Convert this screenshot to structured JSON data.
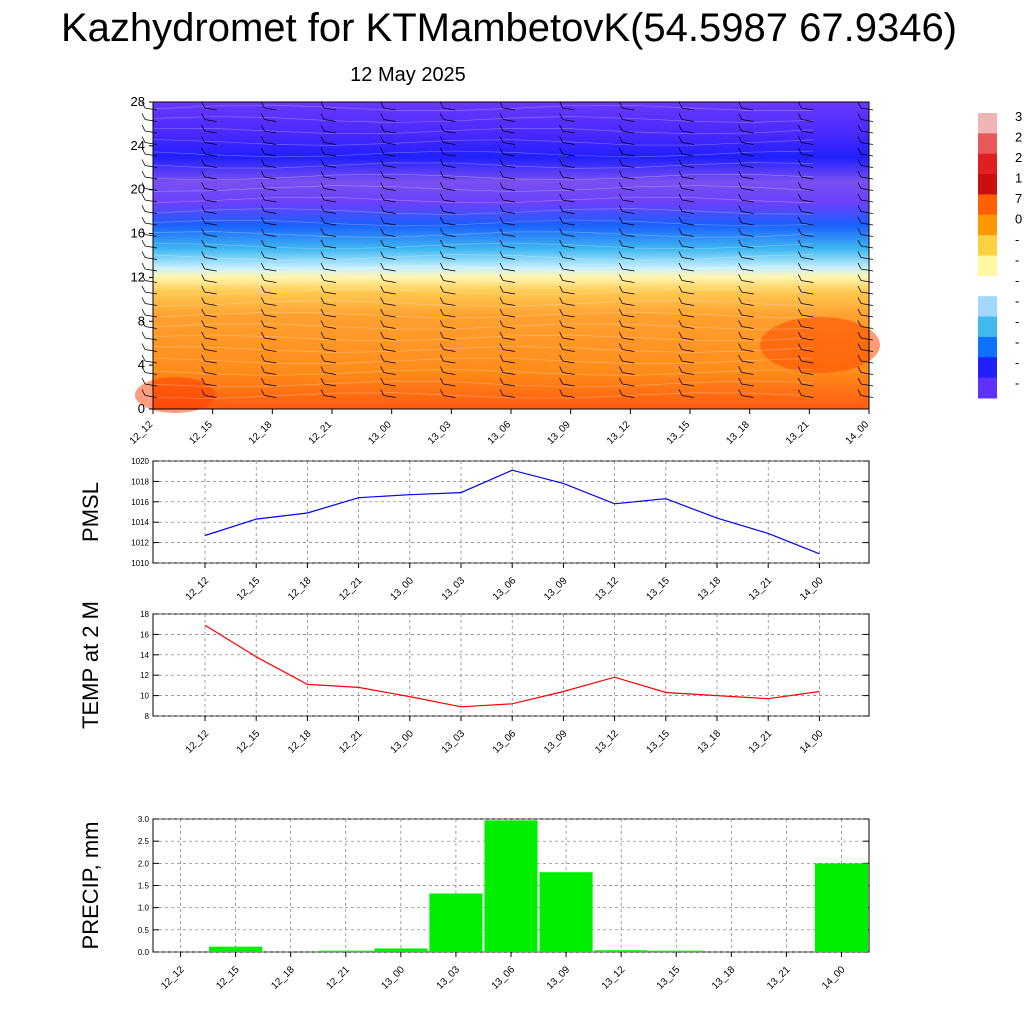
{
  "title": "Kazhydromet for KTMambetovK(54.5987 67.9346)",
  "subtitle": "12 May 2025",
  "times": [
    "12_12",
    "12_15",
    "12_18",
    "12_21",
    "13_00",
    "13_03",
    "13_06",
    "13_09",
    "13_12",
    "13_15",
    "13_18",
    "13_21",
    "14_00"
  ],
  "colorbar": {
    "tick_labels": [
      "3",
      "2",
      "2",
      "1",
      "7",
      "0",
      "-",
      "-",
      "-",
      "-",
      "-",
      "-",
      "-",
      "-"
    ],
    "colors": [
      "#f0b4b4",
      "#e8585a",
      "#e02020",
      "#c81010",
      "#ff6000",
      "#ff9800",
      "#ffd040",
      "#fff8a0",
      "#ffffff",
      "#a0d8ff",
      "#40b8f0",
      "#1070ff",
      "#2020ff",
      "#6030ff"
    ]
  },
  "chart_data": [
    {
      "type": "heatmap",
      "x": [
        "12_12",
        "12_15",
        "12_18",
        "12_21",
        "13_00",
        "13_03",
        "13_06",
        "13_09",
        "13_12",
        "13_15",
        "13_18",
        "13_21",
        "14_00"
      ],
      "ylim": [
        0,
        28
      ],
      "y_ticks": [
        "0",
        "4",
        "8",
        "12",
        "16",
        "20",
        "24",
        "28"
      ]
    },
    {
      "type": "line",
      "ylabel": "PMSL",
      "ylim": [
        1010,
        1020
      ],
      "y_ticks": [
        "1010",
        "1012",
        "1014",
        "1016",
        "1018",
        "1020"
      ],
      "series": [
        {
          "values": [
            1012.7,
            1014.3,
            1014.9,
            1016.4,
            1016.7,
            1016.9,
            1019.1,
            1017.8,
            1015.8,
            1016.3,
            1014.4,
            1012.9,
            1010.9
          ],
          "color": "#0000ff"
        }
      ]
    },
    {
      "type": "line",
      "ylabel": "TEMP at 2 M",
      "ylim": [
        8,
        18
      ],
      "y_ticks": [
        "8",
        "10",
        "12",
        "14",
        "16",
        "18"
      ],
      "series": [
        {
          "values": [
            16.9,
            13.8,
            11.1,
            10.8,
            9.9,
            8.9,
            9.2,
            10.4,
            11.8,
            10.3,
            10.0,
            9.7,
            10.4
          ],
          "color": "#ff0000"
        }
      ]
    },
    {
      "type": "bar",
      "ylabel": "PRECIP, mm",
      "ylim": [
        0,
        3
      ],
      "y_ticks": [
        "0.0",
        "0.5",
        "1.0",
        "1.5",
        "2.0",
        "2.5",
        "3.0"
      ],
      "values": [
        0,
        0.12,
        0,
        0.03,
        0.08,
        1.32,
        2.97,
        1.8,
        0.04,
        0.03,
        0,
        0,
        2.0
      ],
      "color": "#00ee00"
    }
  ]
}
